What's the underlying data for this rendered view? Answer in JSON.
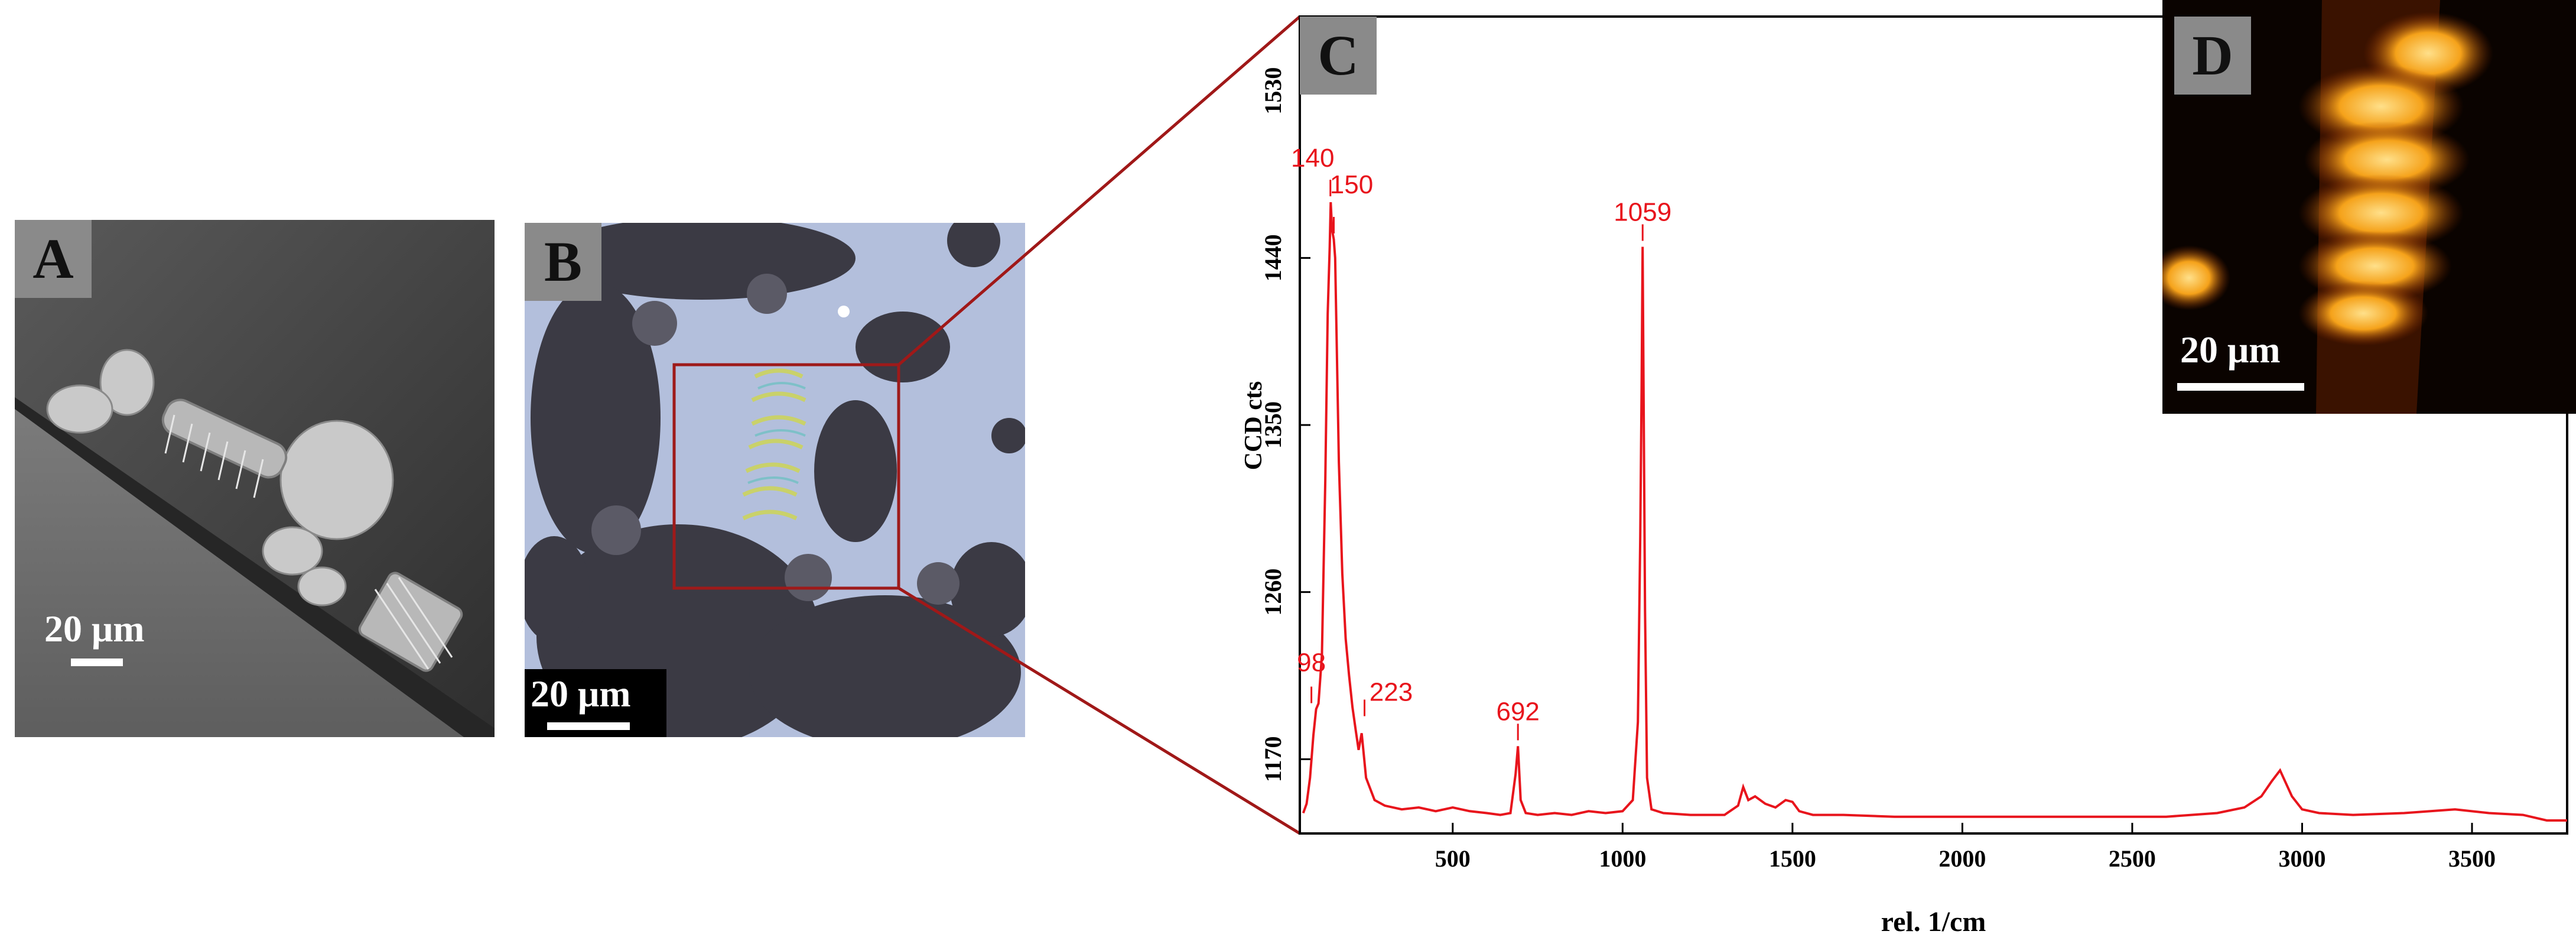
{
  "panels": {
    "a": {
      "letter": "A",
      "scale_label": "20 μm"
    },
    "b": {
      "letter": "B",
      "scale_label": "20 μm"
    },
    "c": {
      "letter": "C"
    },
    "d": {
      "letter": "D",
      "scale_label": "20 μm"
    }
  },
  "colors": {
    "spectrum": "#e8141c",
    "zoom_lines": "#a01818",
    "letter_bg": "#8a8a8a"
  },
  "chart_data": {
    "type": "line",
    "title": "",
    "xlabel": "rel. 1/cm",
    "ylabel": "CCD cts",
    "xlim": [
      50,
      3780
    ],
    "ylim": [
      1130,
      1570
    ],
    "xticks": [
      500,
      1000,
      1500,
      2000,
      2500,
      3000,
      3500
    ],
    "yticks": [
      1170,
      1260,
      1350,
      1440,
      1530
    ],
    "grid": false,
    "series": [
      {
        "values_x": [
          60,
          70,
          80,
          90,
          98,
          105,
          115,
          125,
          132,
          138,
          141,
          145,
          150,
          154,
          158,
          165,
          175,
          185,
          195,
          205,
          215,
          223,
          232,
          245,
          270,
          300,
          350,
          400,
          450,
          500,
          550,
          600,
          640,
          670,
          685,
          692,
          700,
          715,
          750,
          800,
          850,
          900,
          950,
          1000,
          1030,
          1045,
          1052,
          1056,
          1059,
          1062,
          1066,
          1072,
          1085,
          1120,
          1200,
          1300,
          1340,
          1355,
          1370,
          1390,
          1420,
          1450,
          1480,
          1500,
          1520,
          1560,
          1650,
          1800,
          2000,
          2200,
          2400,
          2600,
          2750,
          2830,
          2880,
          2910,
          2935,
          2950,
          2970,
          3000,
          3050,
          3150,
          3300,
          3450,
          3550,
          3650,
          3720,
          3780
        ],
        "values_y": [
          1141,
          1146,
          1160,
          1183,
          1197,
          1200,
          1226,
          1320,
          1410,
          1446,
          1470,
          1455,
          1450,
          1440,
          1400,
          1330,
          1270,
          1235,
          1215,
          1198,
          1185,
          1175,
          1184,
          1160,
          1148,
          1145,
          1143,
          1144,
          1142,
          1144,
          1142,
          1141,
          1140,
          1141,
          1162,
          1177,
          1148,
          1141,
          1140,
          1141,
          1140,
          1142,
          1141,
          1142,
          1148,
          1190,
          1290,
          1370,
          1446,
          1360,
          1250,
          1160,
          1143,
          1141,
          1140,
          1140,
          1145,
          1155,
          1148,
          1150,
          1146,
          1144,
          1148,
          1147,
          1142,
          1140,
          1140,
          1139,
          1139,
          1139,
          1139,
          1139,
          1141,
          1144,
          1150,
          1158,
          1164,
          1158,
          1150,
          1143,
          1141,
          1140,
          1141,
          1143,
          1141,
          1140,
          1137,
          1137
        ]
      }
    ],
    "peaks": [
      {
        "label": "140",
        "x": 140,
        "y": 1470
      },
      {
        "label": "150",
        "x": 150,
        "y": 1450
      },
      {
        "label": "98",
        "x": 98,
        "y": 1197
      },
      {
        "label": "223",
        "x": 223,
        "y": 1190
      },
      {
        "label": "692",
        "x": 692,
        "y": 1177
      },
      {
        "label": "1059",
        "x": 1059,
        "y": 1446
      }
    ]
  }
}
